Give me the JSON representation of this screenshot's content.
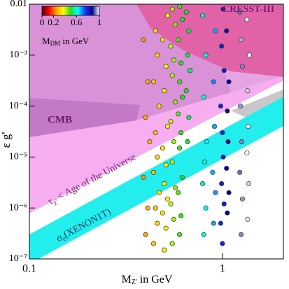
{
  "chart_data": {
    "type": "scatter",
    "x_label": [
      "M",
      "Z'",
      " in GeV"
    ],
    "y_label": "ε g'",
    "xlim": [
      0.1,
      2.07
    ],
    "ylim": [
      1e-07,
      0.01
    ],
    "log_x": true,
    "log_y": true,
    "xticks": [
      0.1,
      1
    ],
    "yticks": [
      {
        "value": 1e-07,
        "label": "10⁻⁷"
      },
      {
        "value": 1e-06,
        "label": "10⁻⁶"
      },
      {
        "value": 1e-05,
        "label": "10⁻⁵"
      },
      {
        "value": 0.0001,
        "label": "10⁻⁴"
      },
      {
        "value": 0.001,
        "label": "10⁻³"
      },
      0.01
    ],
    "region_labels": {
      "cmb": "CMB",
      "cresst": "CRESST-III",
      "lifetime": [
        "τ",
        "χ'",
        " < Age of the Universe"
      ],
      "xenon": [
        "σ",
        "e",
        "(XENON1T)"
      ]
    },
    "colorbar": {
      "label": [
        "M",
        "DM",
        " in GeV"
      ],
      "lim": [
        0,
        1
      ],
      "ticks": [
        0,
        0.2,
        0.6,
        1
      ],
      "colormap": [
        "#5a0000",
        "#ff0000",
        "#ffa500",
        "#ffff00",
        "#22dd22",
        "#00ffff",
        "#1a3cff",
        "#00008b",
        "#ffffff"
      ]
    },
    "x": [
      0.44,
      0.46,
      0.45,
      0.47,
      0.44,
      0.46,
      0.45,
      0.47,
      0.44,
      0.46,
      0.45,
      0.5,
      0.51,
      0.49,
      0.52,
      0.5,
      0.51,
      0.49,
      0.52,
      0.5,
      0.51,
      0.49,
      0.52,
      0.55,
      0.56,
      0.54,
      0.57,
      0.55,
      0.56,
      0.54,
      0.57,
      0.55,
      0.56,
      0.54,
      0.57,
      0.55,
      0.6,
      0.61,
      0.59,
      0.62,
      0.6,
      0.61,
      0.59,
      0.62,
      0.6,
      0.61,
      0.59,
      0.62,
      0.6,
      0.66,
      0.67,
      0.65,
      0.68,
      0.66,
      0.67,
      0.65,
      0.4,
      0.41,
      0.39,
      0.42,
      0.4,
      0.41,
      0.39,
      0.8,
      0.82,
      0.79,
      0.81,
      0.83,
      0.8,
      0.82,
      0.79,
      0.9,
      0.92,
      0.89,
      0.91,
      0.9,
      0.92,
      1.0,
      0.98,
      1.02,
      0.99,
      1.01,
      1.0,
      0.98,
      1.02,
      0.99,
      1.01,
      1.06,
      1.08,
      1.05,
      1.07,
      1.06,
      1.08,
      1.05,
      1.25,
      1.27,
      1.23,
      1.26,
      1.24,
      1.27,
      1.25,
      1.23,
      1.35,
      1.37,
      1.34,
      1.36,
      1.35,
      1.38,
      1.34
    ],
    "y": [
      2e-07,
      5e-07,
      1e-06,
      2e-06,
      5e-06,
      1e-05,
      3e-05,
      0.0001,
      0.0003,
      0.001,
      0.003,
      1.5e-07,
      4e-07,
      8e-07,
      1.5e-06,
      3e-06,
      7e-06,
      1.5e-05,
      4e-05,
      0.0002,
      0.0006,
      0.002,
      0.006,
      2e-07,
      6e-07,
      1.2e-06,
      2.5e-06,
      8e-06,
      2e-05,
      5e-05,
      0.00012,
      0.0004,
      0.0008,
      0.0015,
      0.004,
      0.008,
      3e-07,
      7e-07,
      2e-06,
      4e-06,
      1.5e-05,
      3e-05,
      7e-05,
      0.00015,
      0.0003,
      0.0007,
      0.002,
      0.005,
      0.009,
      2e-05,
      6e-05,
      0.0002,
      0.0005,
      0.001,
      0.003,
      0.007,
      3e-07,
      1e-06,
      4e-06,
      2e-05,
      6e-05,
      0.0003,
      0.002,
      3e-07,
      1e-06,
      3e-06,
      8e-06,
      2e-05,
      0.00015,
      0.001,
      0.006,
      5e-07,
      2e-06,
      5e-06,
      4e-05,
      0.0003,
      0.003,
      2e-07,
      5e-07,
      1.2e-06,
      3e-06,
      1e-05,
      3e-05,
      0.0001,
      0.0005,
      0.0015,
      0.008,
      8e-07,
      2e-06,
      6e-06,
      2e-05,
      8e-05,
      0.0003,
      0.003,
      3e-07,
      1.5e-06,
      5e-06,
      2e-05,
      0.0001,
      0.0006,
      0.002,
      0.007,
      6e-07,
      3e-06,
      1.2e-05,
      4e-05,
      0.0002,
      0.001,
      0.005
    ],
    "mdm": [
      0.3,
      0.32,
      0.3,
      0.33,
      0.29,
      0.31,
      0.3,
      0.32,
      0.3,
      0.31,
      0.33,
      0.35,
      0.36,
      0.34,
      0.37,
      0.35,
      0.36,
      0.34,
      0.37,
      0.35,
      0.36,
      0.34,
      0.37,
      0.42,
      0.43,
      0.41,
      0.44,
      0.42,
      0.43,
      0.41,
      0.44,
      0.42,
      0.43,
      0.41,
      0.44,
      0.42,
      0.48,
      0.49,
      0.47,
      0.5,
      0.48,
      0.49,
      0.47,
      0.5,
      0.48,
      0.49,
      0.47,
      0.5,
      0.48,
      0.52,
      0.53,
      0.51,
      0.54,
      0.52,
      0.53,
      0.51,
      0.25,
      0.26,
      0.24,
      0.27,
      0.25,
      0.26,
      0.24,
      0.6,
      0.61,
      0.59,
      0.6,
      0.62,
      0.6,
      0.61,
      0.59,
      0.68,
      0.69,
      0.67,
      0.68,
      0.7,
      0.68,
      0.8,
      0.79,
      0.81,
      0.8,
      0.82,
      0.8,
      0.79,
      0.81,
      0.8,
      0.82,
      0.86,
      0.87,
      0.85,
      0.86,
      0.88,
      0.86,
      0.85,
      0.94,
      0.95,
      0.93,
      0.94,
      0.95,
      0.94,
      0.96,
      0.93,
      0.99,
      0.98,
      1,
      0.99,
      0.98,
      1,
      0.99
    ]
  }
}
